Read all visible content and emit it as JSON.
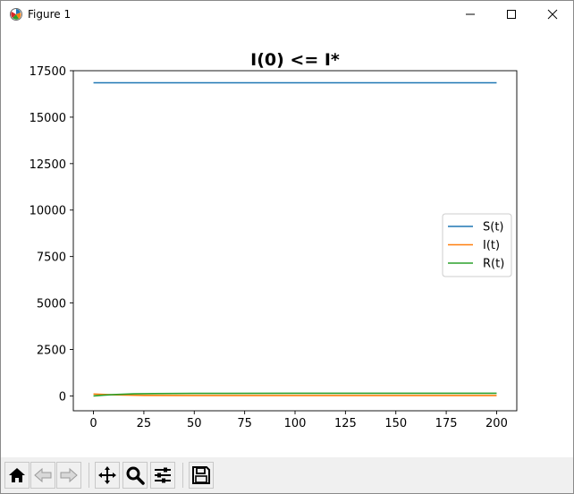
{
  "window": {
    "title": "Figure 1",
    "icons": {
      "app": "matplotlib-icon",
      "minimize": "minimize-icon",
      "maximize": "maximize-icon",
      "close": "close-icon"
    }
  },
  "toolbar": {
    "buttons": [
      {
        "name": "home-icon",
        "label": "Home"
      },
      {
        "name": "back-icon",
        "label": "Back"
      },
      {
        "name": "forward-icon",
        "label": "Forward"
      },
      {
        "name": "pan-icon",
        "label": "Pan"
      },
      {
        "name": "zoom-icon",
        "label": "Zoom"
      },
      {
        "name": "configure-subplots-icon",
        "label": "Subplots"
      },
      {
        "name": "save-icon",
        "label": "Save"
      }
    ]
  },
  "chart_data": {
    "type": "line",
    "title": "I(0) <= I*",
    "xlabel": "",
    "ylabel": "",
    "xlim": [
      -10,
      210
    ],
    "ylim": [
      -800,
      17500
    ],
    "xticks": [
      0,
      25,
      50,
      75,
      100,
      125,
      150,
      175,
      200
    ],
    "yticks": [
      0,
      2500,
      5000,
      7500,
      10000,
      12500,
      15000,
      17500
    ],
    "grid": false,
    "legend_position": "center-right",
    "series": [
      {
        "name": "S(t)",
        "color": "#1f77b4",
        "x": [
          0,
          200
        ],
        "y": [
          16850,
          16850
        ]
      },
      {
        "name": "I(t)",
        "color": "#ff7f0e",
        "x": [
          0,
          10,
          25,
          50,
          100,
          200
        ],
        "y": [
          100,
          60,
          30,
          20,
          20,
          20
        ]
      },
      {
        "name": "R(t)",
        "color": "#2ca02c",
        "x": [
          0,
          5,
          10,
          20,
          30,
          50,
          100,
          200
        ],
        "y": [
          0,
          40,
          70,
          110,
          125,
          135,
          140,
          140
        ]
      }
    ]
  }
}
